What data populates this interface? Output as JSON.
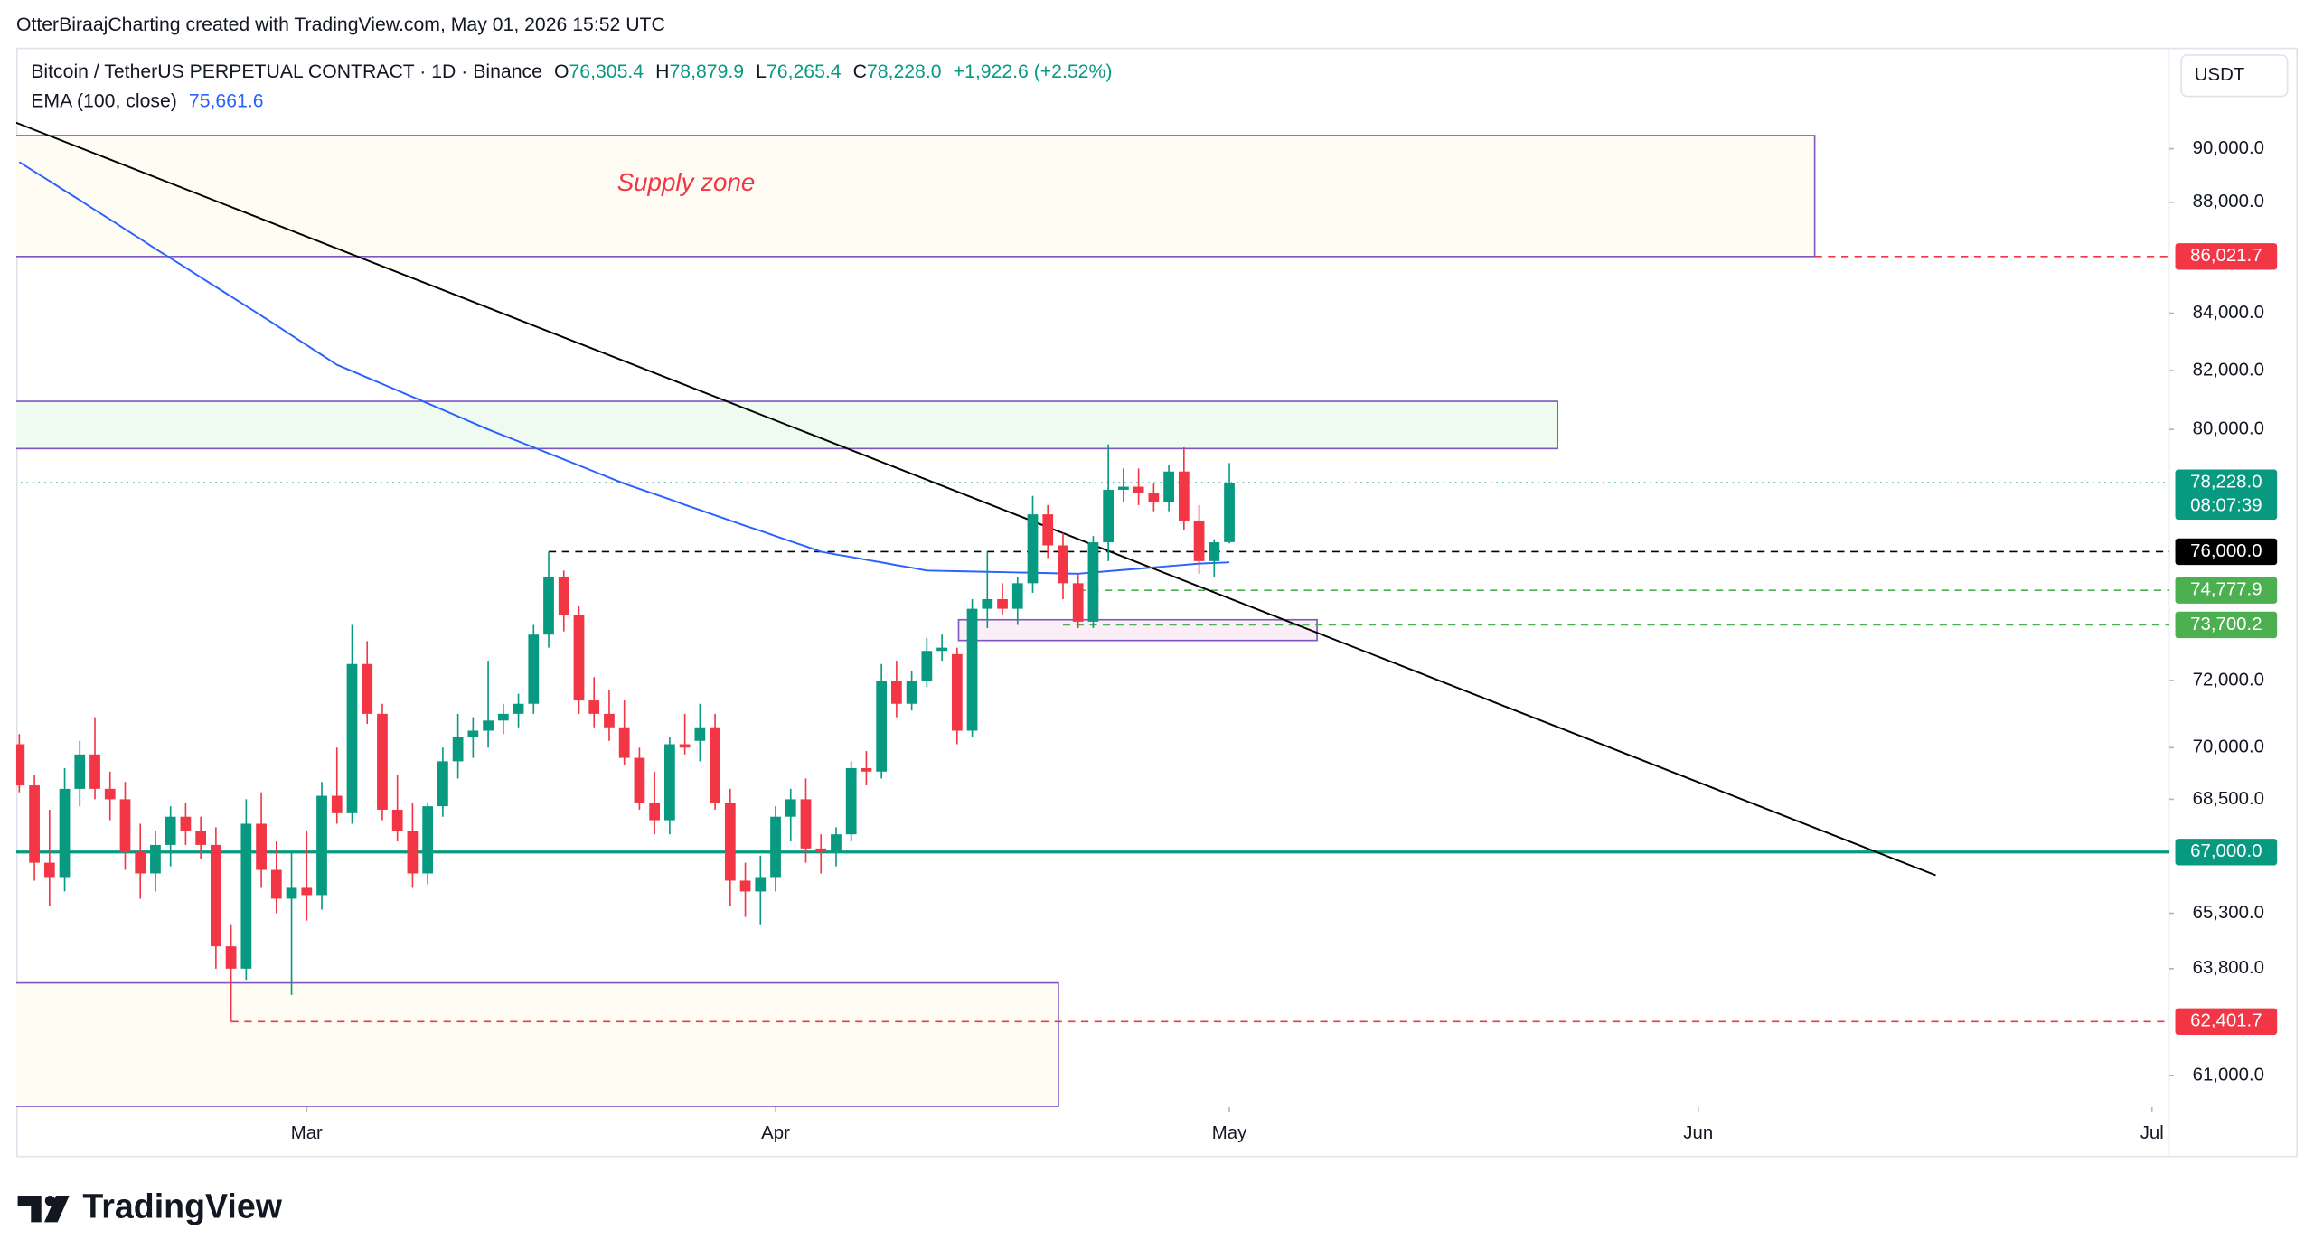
{
  "chart_data": {
    "type": "candlestick",
    "attribution": "OtterBiraajCharting created with TradingView.com, May 01, 2026 15:52 UTC",
    "title": "Bitcoin / TetherUS PERPETUAL CONTRACT · 1D · Binance",
    "ohlc": [
      {
        "key": "O",
        "text": "76,305.4"
      },
      {
        "key": "H",
        "text": "78,879.9"
      },
      {
        "key": "L",
        "text": "76,265.4"
      },
      {
        "key": "C",
        "text": "78,228.0"
      },
      {
        "key": "",
        "text": "+1,922.6 (+2.52%)"
      }
    ],
    "currency": "USDT",
    "log_scale": true,
    "up_color": "#089981",
    "down_color": "#f23645",
    "open": [
      70100,
      68900,
      66700,
      66300,
      68800,
      69800,
      68800,
      68500,
      67000,
      66400,
      67200,
      68000,
      67600,
      67200,
      64400,
      63800,
      67800,
      66500,
      65700,
      66000,
      65800,
      68600,
      68100,
      72500,
      71000,
      68200,
      67600,
      66400,
      68300,
      69600,
      70300,
      70500,
      70800,
      71000,
      71300,
      73400,
      75200,
      74000,
      71400,
      71000,
      70600,
      69700,
      68400,
      67900,
      70100,
      70200,
      70600,
      68400,
      66200,
      65900,
      66300,
      68000,
      68500,
      67100,
      67000,
      67500,
      69400,
      69300,
      72000,
      71300,
      72000,
      72900,
      72800,
      70500,
      74200,
      74500,
      74200,
      75000,
      77200,
      76200,
      75000,
      73800,
      76300,
      78000,
      78100,
      77900,
      77600,
      78600,
      77000,
      75700,
      76305.4
    ],
    "high": [
      70400,
      69200,
      68200,
      69400,
      70200,
      70900,
      69300,
      69000,
      67800,
      67600,
      68300,
      68400,
      68000,
      67700,
      65000,
      68500,
      68700,
      67300,
      67000,
      67600,
      69000,
      70000,
      73700,
      73200,
      71300,
      69200,
      68400,
      68400,
      70000,
      71000,
      70900,
      72600,
      71300,
      71600,
      73700,
      76000,
      75400,
      74300,
      72100,
      71700,
      71400,
      70000,
      69300,
      70300,
      71000,
      71300,
      71000,
      68800,
      66700,
      66900,
      68300,
      68800,
      69100,
      67500,
      67700,
      69600,
      69900,
      72500,
      72600,
      72300,
      73300,
      73400,
      73000,
      74500,
      76000,
      75000,
      75200,
      77800,
      77500,
      76600,
      75300,
      76500,
      79500,
      78700,
      78700,
      78200,
      78800,
      79400,
      77500,
      76400,
      78879.9
    ],
    "low": [
      68700,
      66200,
      65500,
      65900,
      68300,
      68500,
      67900,
      66500,
      65700,
      65900,
      66600,
      67200,
      66800,
      63800,
      62400,
      63500,
      66000,
      65300,
      63100,
      65100,
      65400,
      67800,
      67800,
      70700,
      67900,
      67300,
      66000,
      66100,
      68000,
      69100,
      69700,
      70000,
      70400,
      70600,
      71000,
      73000,
      73500,
      71000,
      70600,
      70200,
      69500,
      68200,
      67500,
      67500,
      69800,
      69600,
      68200,
      65500,
      65200,
      65000,
      65900,
      67300,
      66700,
      66400,
      66600,
      67300,
      68900,
      69100,
      70900,
      71100,
      71800,
      72600,
      70100,
      70300,
      73600,
      74000,
      73700,
      74700,
      75800,
      74500,
      73600,
      73600,
      75700,
      77600,
      77500,
      77300,
      77300,
      76700,
      75300,
      75200,
      76265.4
    ],
    "close": [
      68900,
      66700,
      66300,
      68800,
      69800,
      68800,
      68500,
      67000,
      66400,
      67200,
      68000,
      67600,
      67200,
      64400,
      63800,
      67800,
      66500,
      65700,
      66000,
      65800,
      68600,
      68100,
      72500,
      71000,
      68200,
      67600,
      66400,
      68300,
      69600,
      70300,
      70500,
      70800,
      71000,
      71300,
      73400,
      75200,
      74000,
      71400,
      71000,
      70600,
      69700,
      68400,
      67900,
      70100,
      70000,
      70600,
      68400,
      66200,
      65900,
      66300,
      68000,
      68500,
      67100,
      67000,
      67500,
      69400,
      69300,
      72000,
      71300,
      72000,
      72900,
      73000,
      70500,
      74200,
      74500,
      74200,
      75000,
      77200,
      76200,
      75000,
      73800,
      76300,
      78000,
      78100,
      77900,
      77600,
      78600,
      77000,
      75700,
      76300,
      78228.0
    ],
    "ema": {
      "name": "EMA (100, close)",
      "value_label": "75,661.6",
      "color": "#2962ff",
      "values": [
        89500,
        89140,
        88790,
        88430,
        88080,
        87720,
        87370,
        87010,
        86660,
        86300,
        85960,
        85620,
        85270,
        84930,
        84590,
        84250,
        83910,
        83570,
        83220,
        82880,
        82540,
        82200,
        81980,
        81760,
        81540,
        81320,
        81100,
        80880,
        80660,
        80440,
        80220,
        80000,
        79800,
        79600,
        79400,
        79200,
        79000,
        78800,
        78600,
        78400,
        78200,
        78030,
        77860,
        77690,
        77510,
        77340,
        77170,
        77000,
        76830,
        76670,
        76500,
        76330,
        76170,
        76000,
        75910,
        75830,
        75740,
        75660,
        75570,
        75490,
        75400,
        75390,
        75380,
        75370,
        75360,
        75350,
        75340,
        75330,
        75320,
        75310,
        75300,
        75340,
        75380,
        75420,
        75460,
        75500,
        75540,
        75580,
        75620,
        75640,
        75661.6
      ]
    },
    "xlim": [
      -0.3,
      142.5
    ],
    "xticks": [
      {
        "value": 19,
        "label": "Mar"
      },
      {
        "value": 50,
        "label": "Apr"
      },
      {
        "value": 80,
        "label": "May"
      },
      {
        "value": 111,
        "label": "Jun"
      },
      {
        "value": 141,
        "label": "Jul"
      }
    ],
    "ylim": [
      60200,
      93900
    ],
    "yticks": [
      {
        "value": 90000,
        "label": "90,000.0"
      },
      {
        "value": 88000,
        "label": "88,000.0"
      },
      {
        "value": 84000,
        "label": "84,000.0"
      },
      {
        "value": 82000,
        "label": "82,000.0"
      },
      {
        "value": 80000,
        "label": "80,000.0"
      },
      {
        "value": 72000,
        "label": "72,000.0"
      },
      {
        "value": 70000,
        "label": "70,000.0"
      },
      {
        "value": 68500,
        "label": "68,500.0"
      },
      {
        "value": 65300,
        "label": "65,300.0"
      },
      {
        "value": 63800,
        "label": "63,800.0"
      },
      {
        "value": 61000,
        "label": "61,000.0"
      }
    ],
    "levels": [
      {
        "value": 86021.7,
        "label": "86,021.7",
        "color": "#f23645",
        "style": "dashed",
        "from": 118.7
      },
      {
        "value": 78228.0,
        "label": "78,228.0",
        "countdown": "08:07:39",
        "color": "#089981",
        "style": "dotted",
        "from": -0.3
      },
      {
        "value": 76000,
        "label": "76,000.0",
        "color": "#000000",
        "style": "dashed",
        "from": 35
      },
      {
        "value": 74777.9,
        "label": "74,777.9",
        "color": "#4caf50",
        "style": "dashed",
        "from": 70
      },
      {
        "value": 73700.2,
        "label": "73,700.2",
        "color": "#4caf50",
        "style": "dashed",
        "from": 69
      },
      {
        "value": 67000,
        "label": "67,000.0",
        "color": "#089981",
        "style": "solid",
        "from": -0.3
      },
      {
        "value": 62401.7,
        "label": "62,401.7",
        "color": "#f23645",
        "style": "dashed",
        "from": 14
      }
    ],
    "zones": [
      {
        "label": "Supply zone",
        "top": 90500,
        "bottom": 86021.7,
        "from": -0.3,
        "to": 118.7,
        "fill": "#fffcf3",
        "stroke": "#7e57c2"
      },
      {
        "top": 80950,
        "bottom": 79360,
        "from": -0.3,
        "to": 101.7,
        "fill": "#effaf1",
        "stroke": "#7e57c2"
      },
      {
        "top": 73860,
        "bottom": 73220,
        "from": 62.1,
        "to": 85.8,
        "fill": "#fbeef7",
        "stroke": "#7e57c2"
      },
      {
        "top": 63420,
        "bottom": 60200,
        "from": -0.3,
        "to": 68.7,
        "fill": "#fffcf3",
        "stroke": "#7e57c2"
      }
    ],
    "trendline": {
      "x": [
        -0.3,
        126.7
      ],
      "values": [
        91010,
        66350
      ],
      "color": "#000000"
    }
  },
  "brand": "TradingView"
}
